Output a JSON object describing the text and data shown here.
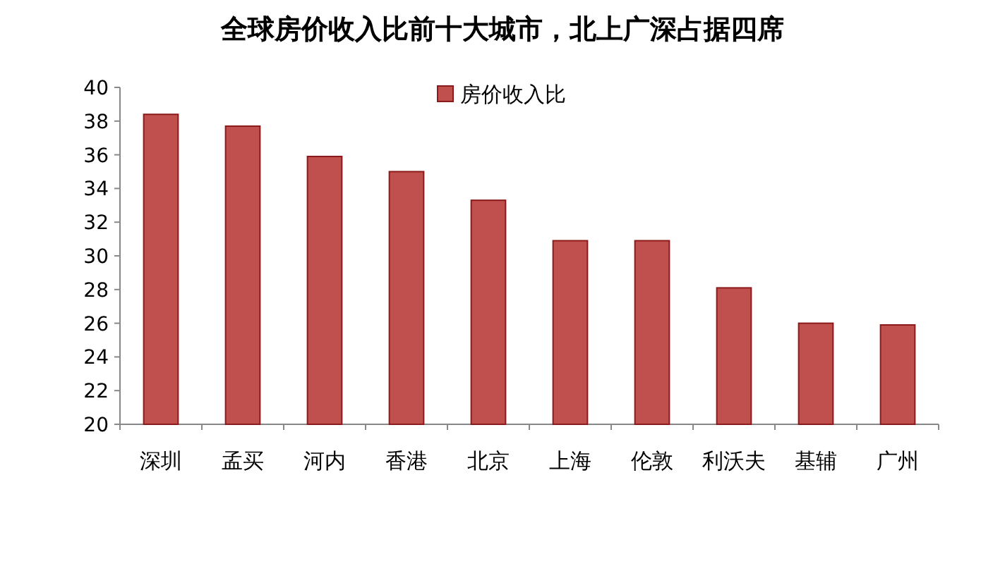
{
  "chart_data": {
    "type": "bar",
    "title": "全球房价收入比前十大城市，北上广深占据四席",
    "categories": [
      "深圳",
      "孟买",
      "河内",
      "香港",
      "北京",
      "上海",
      "伦敦",
      "利沃夫",
      "基辅",
      "广州"
    ],
    "series": [
      {
        "name": "房价收入比",
        "color": "#c0504d",
        "values": [
          38.4,
          37.7,
          35.9,
          35.0,
          33.3,
          30.9,
          30.9,
          28.1,
          26.0,
          25.9
        ]
      }
    ],
    "ylim": [
      20,
      40
    ],
    "yticks": [
      20,
      22,
      24,
      26,
      28,
      30,
      32,
      34,
      36,
      38,
      40
    ],
    "grid": false,
    "legend": "top"
  }
}
